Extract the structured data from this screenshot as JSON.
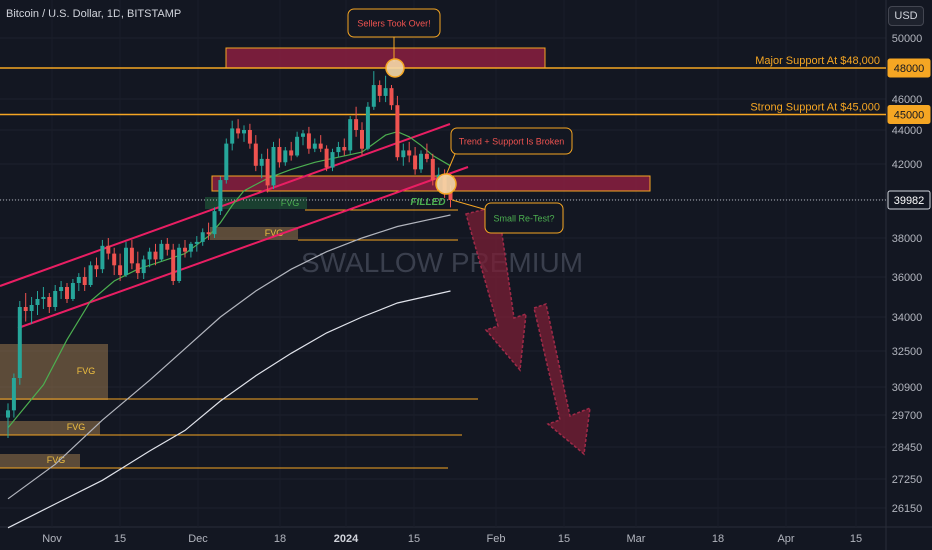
{
  "header": {
    "symbol_title": "Bitcoin / U.S. Dollar, 1D, BITSTAMP",
    "currency_label": "USD"
  },
  "watermark": "SWALLOW PREMIUM",
  "colors": {
    "background": "#131722",
    "bull": "#26a69a",
    "bear": "#ef5350",
    "channel": "#e91e63",
    "support_line": "#f5a623",
    "zone_fill": "#8b1e3f",
    "fvg_fill": "#8d6e4a",
    "arrow": "#7b1f35"
  },
  "chart_data": {
    "type": "candlestick",
    "y_axis": {
      "ticks": [
        50000,
        48000,
        46000,
        44000,
        42000,
        40000,
        38000,
        36000,
        34000,
        32500,
        30900,
        29700,
        28450,
        27250,
        26150
      ],
      "tick_labels": [
        "50000",
        "",
        "46000",
        "44000",
        "42000",
        "",
        "38000",
        "36000",
        "34000",
        "32500",
        "30900",
        "29700",
        "28450",
        "27250",
        "26150"
      ]
    },
    "x_axis": {
      "tick_labels": [
        "Nov",
        "15",
        "Dec",
        "18",
        "2024",
        "15",
        "Feb",
        "15",
        "Mar",
        "18",
        "Apr",
        "15"
      ]
    },
    "price_tags": [
      {
        "value": 48000,
        "label": "48000",
        "style": "orange"
      },
      {
        "value": 45000,
        "label": "45000",
        "style": "orange"
      },
      {
        "value": 39982,
        "label": "39982",
        "style": "current"
      }
    ],
    "horizontal_levels": [
      {
        "value": 48000,
        "label": "Major Support At $48,000",
        "extends": "full"
      },
      {
        "value": 45000,
        "label": "Strong Support At $45,000",
        "extends": "full"
      }
    ],
    "annotations": [
      {
        "text": "Sellers Took Over!",
        "style": "red"
      },
      {
        "text": "Trend + Support Is Broken",
        "style": "red"
      },
      {
        "text": "Small Re-Test?",
        "style": "green"
      },
      {
        "text": "FILLED",
        "style": "green-italic"
      }
    ],
    "fvg_labels": [
      "FVG",
      "FVG",
      "FVG",
      "FVG",
      "FVG"
    ],
    "candles": [
      [
        29600,
        30200,
        28800,
        29900
      ],
      [
        29900,
        31500,
        29600,
        31300
      ],
      [
        31300,
        34800,
        31000,
        34500
      ],
      [
        34500,
        35200,
        33800,
        34300
      ],
      [
        34300,
        35000,
        33700,
        34600
      ],
      [
        34600,
        35300,
        34100,
        34900
      ],
      [
        34900,
        35500,
        34400,
        35000
      ],
      [
        35000,
        35200,
        34200,
        34500
      ],
      [
        34500,
        35600,
        34300,
        35300
      ],
      [
        35300,
        35800,
        34900,
        35500
      ],
      [
        35500,
        35700,
        34700,
        34900
      ],
      [
        34900,
        35900,
        34800,
        35700
      ],
      [
        35700,
        36200,
        35300,
        36000
      ],
      [
        36000,
        36500,
        35300,
        35600
      ],
      [
        35600,
        36800,
        35500,
        36600
      ],
      [
        36600,
        37000,
        36000,
        36400
      ],
      [
        36400,
        37900,
        36200,
        37600
      ],
      [
        37600,
        38000,
        36900,
        37200
      ],
      [
        37200,
        37500,
        36100,
        36600
      ],
      [
        36600,
        37200,
        35800,
        36100
      ],
      [
        36100,
        37800,
        36000,
        37500
      ],
      [
        37500,
        37900,
        36400,
        36700
      ],
      [
        36700,
        37300,
        35900,
        36200
      ],
      [
        36200,
        37100,
        35900,
        36900
      ],
      [
        36900,
        37500,
        36500,
        37300
      ],
      [
        37300,
        37700,
        36600,
        36900
      ],
      [
        36900,
        37900,
        36800,
        37700
      ],
      [
        37700,
        38000,
        37100,
        37400
      ],
      [
        37400,
        37700,
        35600,
        35800
      ],
      [
        35800,
        37700,
        35700,
        37500
      ],
      [
        37500,
        37900,
        37000,
        37300
      ],
      [
        37300,
        37800,
        37000,
        37700
      ],
      [
        37700,
        38100,
        37300,
        37800
      ],
      [
        37800,
        38500,
        37600,
        38300
      ],
      [
        38300,
        38800,
        37900,
        38200
      ],
      [
        38200,
        39600,
        38000,
        39400
      ],
      [
        39400,
        41300,
        39200,
        41100
      ],
      [
        41100,
        43500,
        40900,
        43200
      ],
      [
        43200,
        44600,
        42800,
        44100
      ],
      [
        44100,
        44700,
        43500,
        43800
      ],
      [
        43800,
        44300,
        43300,
        44000
      ],
      [
        44000,
        44400,
        42900,
        43200
      ],
      [
        43200,
        43700,
        41600,
        41900
      ],
      [
        41900,
        42600,
        41200,
        42300
      ],
      [
        42300,
        42900,
        40400,
        40800
      ],
      [
        40800,
        43300,
        40600,
        43000
      ],
      [
        43000,
        43500,
        41800,
        42100
      ],
      [
        42100,
        43000,
        41900,
        42800
      ],
      [
        42800,
        43300,
        42200,
        42500
      ],
      [
        42500,
        43900,
        42400,
        43600
      ],
      [
        43600,
        44000,
        43100,
        43800
      ],
      [
        43800,
        44200,
        42600,
        42900
      ],
      [
        42900,
        43500,
        42700,
        43200
      ],
      [
        43200,
        43700,
        42700,
        42900
      ],
      [
        42900,
        43100,
        41600,
        41800
      ],
      [
        41800,
        42900,
        41600,
        42700
      ],
      [
        42700,
        43300,
        42400,
        43000
      ],
      [
        43000,
        43500,
        42500,
        42800
      ],
      [
        42800,
        44900,
        42600,
        44700
      ],
      [
        44700,
        45500,
        43600,
        44000
      ],
      [
        44000,
        44500,
        42500,
        42900
      ],
      [
        42900,
        45800,
        42800,
        45500
      ],
      [
        45500,
        47800,
        45300,
        46900
      ],
      [
        46900,
        47200,
        45800,
        46200
      ],
      [
        46200,
        47500,
        45800,
        46700
      ],
      [
        46700,
        46900,
        45300,
        45600
      ],
      [
        45600,
        46200,
        42200,
        42400
      ],
      [
        42400,
        43200,
        41900,
        42800
      ],
      [
        42800,
        43300,
        42100,
        42500
      ],
      [
        42500,
        43000,
        41400,
        41700
      ],
      [
        41700,
        42800,
        41500,
        42600
      ],
      [
        42600,
        43200,
        42100,
        42300
      ],
      [
        42300,
        42600,
        40800,
        41100
      ],
      [
        41100,
        41800,
        40600,
        41400
      ],
      [
        41400,
        41700,
        40100,
        40400
      ],
      [
        40400,
        40800,
        39600,
        39982
      ]
    ],
    "moving_averages": [
      {
        "name": "",
        "color": "#4caf50",
        "values": [
          [
            0,
            29200
          ],
          [
            6,
            31000
          ],
          [
            10,
            33000
          ],
          [
            14,
            34800
          ],
          [
            18,
            35800
          ],
          [
            22,
            36400
          ],
          [
            26,
            36800
          ],
          [
            30,
            37200
          ],
          [
            34,
            38100
          ],
          [
            36,
            38800
          ],
          [
            38,
            39700
          ],
          [
            40,
            40500
          ],
          [
            44,
            41200
          ],
          [
            48,
            41700
          ],
          [
            52,
            42100
          ],
          [
            56,
            42400
          ],
          [
            60,
            42700
          ],
          [
            62,
            43200
          ],
          [
            64,
            43700
          ],
          [
            66,
            43900
          ],
          [
            68,
            43600
          ],
          [
            70,
            43100
          ],
          [
            72,
            42500
          ],
          [
            75,
            41900
          ]
        ]
      },
      {
        "name": "",
        "color": "#b2b5be",
        "values": [
          [
            0,
            26500
          ],
          [
            8,
            27800
          ],
          [
            16,
            29500
          ],
          [
            24,
            31200
          ],
          [
            30,
            32600
          ],
          [
            36,
            34000
          ],
          [
            42,
            35300
          ],
          [
            48,
            36400
          ],
          [
            54,
            37300
          ],
          [
            60,
            38000
          ],
          [
            66,
            38600
          ],
          [
            72,
            39000
          ],
          [
            75,
            39200
          ]
        ]
      },
      {
        "name": "",
        "color": "#e0e3eb",
        "values": [
          [
            0,
            25400
          ],
          [
            8,
            26300
          ],
          [
            16,
            27200
          ],
          [
            24,
            28300
          ],
          [
            30,
            29100
          ],
          [
            36,
            30300
          ],
          [
            42,
            31400
          ],
          [
            48,
            32400
          ],
          [
            54,
            33300
          ],
          [
            60,
            34000
          ],
          [
            66,
            34700
          ],
          [
            72,
            35100
          ],
          [
            75,
            35300
          ]
        ]
      }
    ]
  }
}
